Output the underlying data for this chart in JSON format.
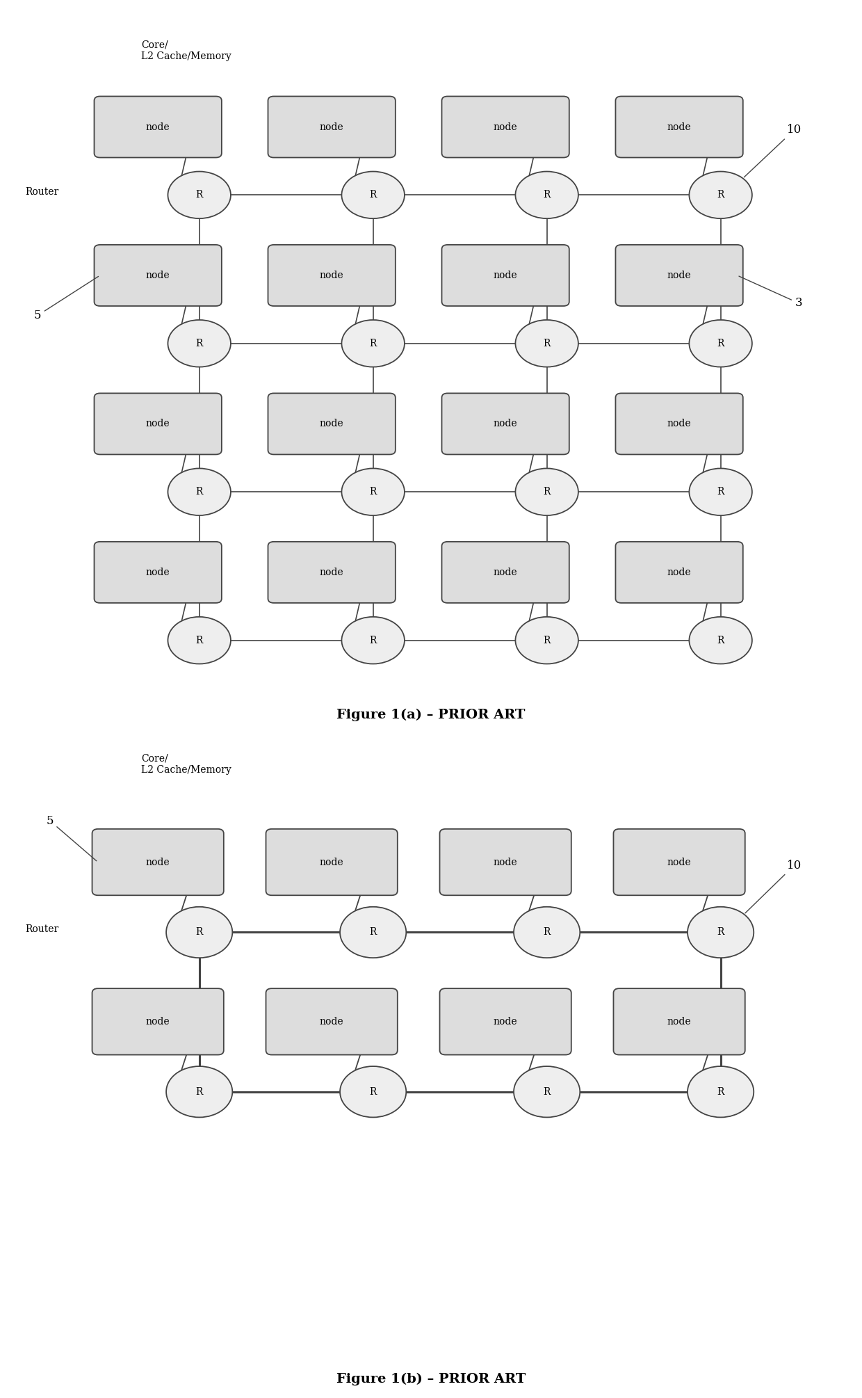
{
  "fig_width": 12.4,
  "fig_height": 20.1,
  "bg_color": "#ffffff",
  "fig1a": {
    "title": "Figure 1(a) – PRIOR ART",
    "router_label": "R",
    "node_label": "node",
    "router_color": "#eeeeee",
    "node_color": "#dddddd",
    "line_color": "#444444",
    "label_router": "Router",
    "label_core": "Core/\nL2 Cache/Memory",
    "label_5": "5",
    "label_10": "10",
    "label_3": "3"
  },
  "fig1b": {
    "title": "Figure 1(b) – PRIOR ART",
    "router_label": "R",
    "node_label": "node",
    "router_color": "#eeeeee",
    "node_color": "#dddddd",
    "line_color": "#444444",
    "label_router": "Router",
    "label_core": "Core/\nL2 Cache/Memory",
    "label_5": "5",
    "label_10": "10"
  }
}
